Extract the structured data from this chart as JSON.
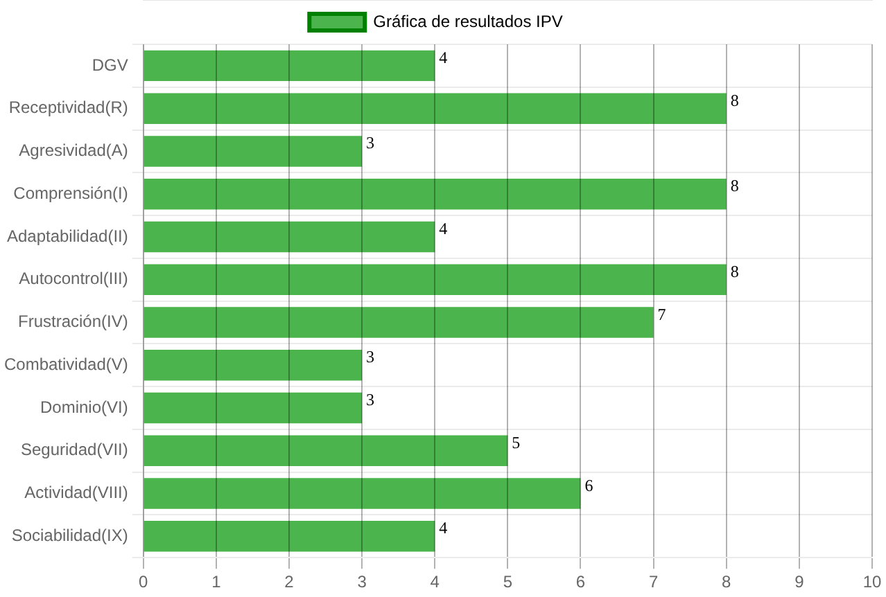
{
  "chart_data": {
    "type": "bar",
    "orientation": "horizontal",
    "categories": [
      "DGV",
      "Receptividad(R)",
      "Agresividad(A)",
      "Comprensión(I)",
      "Adaptabilidad(II)",
      "Autocontrol(III)",
      "Frustración(IV)",
      "Combatividad(V)",
      "Dominio(VI)",
      "Seguridad(VII)",
      "Actividad(VIII)",
      "Sociabilidad(IX)"
    ],
    "series": [
      {
        "name": "Gráfica de resultados IPV",
        "color": "#4cb44c",
        "values": [
          4,
          8,
          3,
          8,
          4,
          8,
          7,
          3,
          3,
          5,
          6,
          4
        ]
      }
    ],
    "xlim": [
      0,
      10
    ],
    "xticks": [
      0,
      1,
      2,
      3,
      4,
      5,
      6,
      7,
      8,
      9,
      10
    ],
    "grid": true,
    "legend": "top",
    "data_labels": true
  }
}
